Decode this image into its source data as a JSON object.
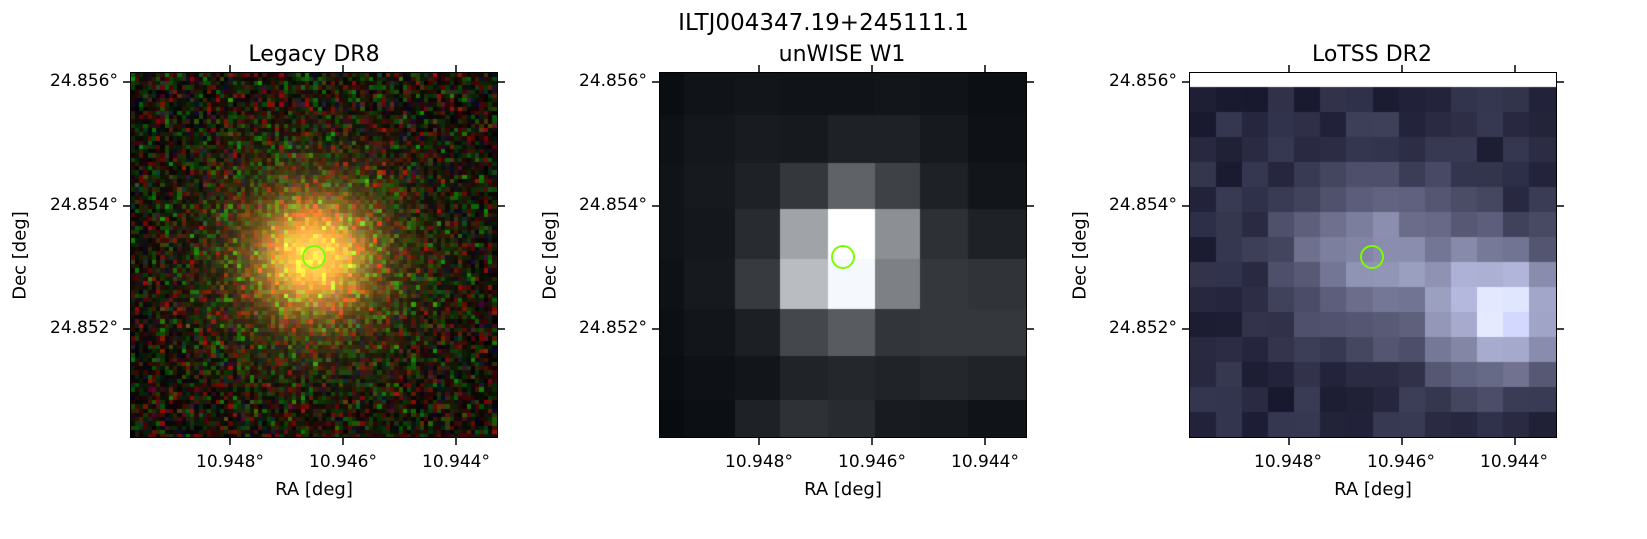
{
  "figure": {
    "title": "ILTJ004347.19+245111.1"
  },
  "panels": [
    {
      "id": "legacy",
      "title": "Legacy DR8",
      "xlabel": "RA [deg]",
      "ylabel": "Dec [deg]",
      "xticks": [
        "10.948°",
        "10.946°",
        "10.944°"
      ],
      "yticks": [
        "24.856°",
        "24.854°",
        "24.852°"
      ]
    },
    {
      "id": "unwise",
      "title": "unWISE W1",
      "xlabel": "RA [deg]",
      "ylabel": "Dec [deg]",
      "xticks": [
        "10.948°",
        "10.946°",
        "10.944°"
      ],
      "yticks": [
        "24.856°",
        "24.854°",
        "24.852°"
      ]
    },
    {
      "id": "lotss",
      "title": "LoTSS DR2",
      "xlabel": "RA [deg]",
      "ylabel": "Dec [deg]",
      "xticks": [
        "10.948°",
        "10.946°",
        "10.944°"
      ],
      "yticks": [
        "24.856°",
        "24.854°",
        "24.852°"
      ]
    }
  ],
  "marker": {
    "shape": "circle",
    "color": "#7cfc00"
  }
}
